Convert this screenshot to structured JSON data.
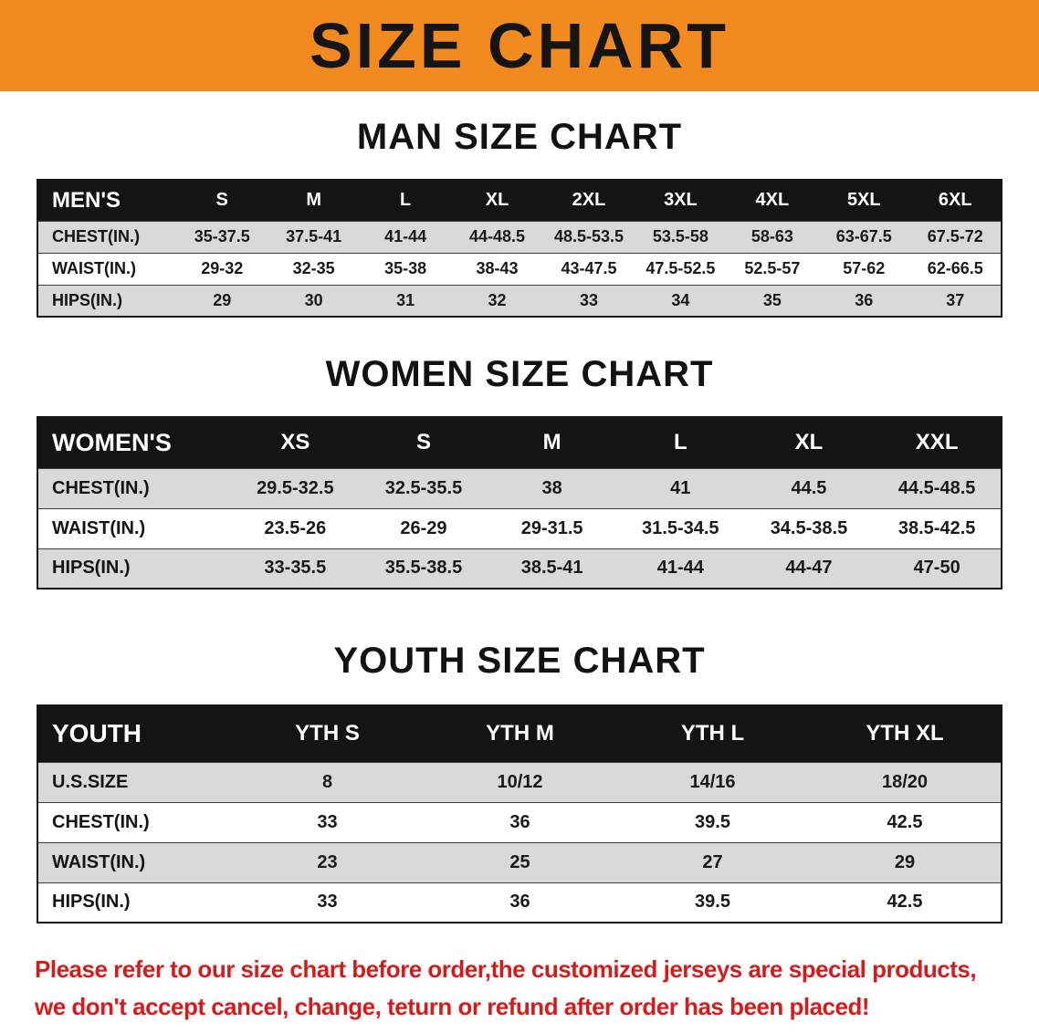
{
  "banner": {
    "title": "SIZE CHART"
  },
  "colors": {
    "banner_bg": "#f18a1f",
    "table_header_bg": "#141414",
    "row_alt_bg": "#d9d9d9",
    "disclaimer_red": "#d51c1c"
  },
  "sections": [
    {
      "id": "mens",
      "heading": "MAN SIZE CHART",
      "table": {
        "header": [
          "MEN'S",
          "S",
          "M",
          "L",
          "XL",
          "2XL",
          "3XL",
          "4XL",
          "5XL",
          "6XL"
        ],
        "rows": [
          {
            "label": "CHEST(IN.)",
            "values": [
              "35-37.5",
              "37.5-41",
              "41-44",
              "44-48.5",
              "48.5-53.5",
              "53.5-58",
              "58-63",
              "63-67.5",
              "67.5-72"
            ]
          },
          {
            "label": "WAIST(IN.)",
            "values": [
              "29-32",
              "32-35",
              "35-38",
              "38-43",
              "43-47.5",
              "47.5-52.5",
              "52.5-57",
              "57-62",
              "62-66.5"
            ]
          },
          {
            "label": "HIPS(IN.)",
            "values": [
              "29",
              "30",
              "31",
              "32",
              "33",
              "34",
              "35",
              "36",
              "37"
            ]
          }
        ]
      }
    },
    {
      "id": "womens",
      "heading": "WOMEN SIZE CHART",
      "table": {
        "header": [
          "WOMEN'S",
          "XS",
          "S",
          "M",
          "L",
          "XL",
          "XXL"
        ],
        "rows": [
          {
            "label": "CHEST(IN.)",
            "values": [
              "29.5-32.5",
              "32.5-35.5",
              "38",
              "41",
              "44.5",
              "44.5-48.5"
            ]
          },
          {
            "label": "WAIST(IN.)",
            "values": [
              "23.5-26",
              "26-29",
              "29-31.5",
              "31.5-34.5",
              "34.5-38.5",
              "38.5-42.5"
            ]
          },
          {
            "label": "HIPS(IN.)",
            "values": [
              "33-35.5",
              "35.5-38.5",
              "38.5-41",
              "41-44",
              "44-47",
              "47-50"
            ]
          }
        ]
      }
    },
    {
      "id": "youth",
      "heading": "YOUTH SIZE CHART",
      "table": {
        "header": [
          "YOUTH",
          "YTH S",
          "YTH M",
          "YTH L",
          "YTH XL"
        ],
        "rows": [
          {
            "label": "U.S.SIZE",
            "values": [
              "8",
              "10/12",
              "14/16",
              "18/20"
            ]
          },
          {
            "label": "CHEST(IN.)",
            "values": [
              "33",
              "36",
              "39.5",
              "42.5"
            ]
          },
          {
            "label": "WAIST(IN.)",
            "values": [
              "23",
              "25",
              "27",
              "29"
            ]
          },
          {
            "label": "HIPS(IN.)",
            "values": [
              "33",
              "36",
              "39.5",
              "42.5"
            ]
          }
        ]
      }
    }
  ],
  "footer": {
    "line1": "Please refer to our size chart before order,the customized jerseys are special products,",
    "line2": "we don't accept cancel, change, teturn or refund after order has been placed!"
  }
}
